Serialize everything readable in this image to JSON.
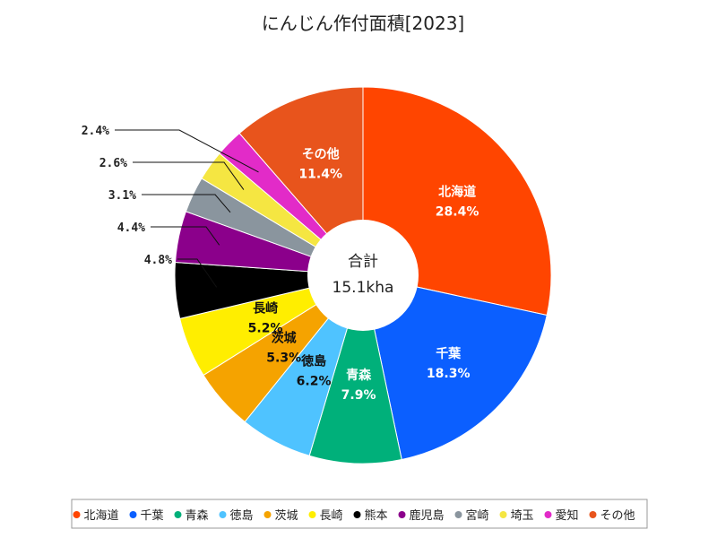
{
  "chart_data": {
    "type": "pie",
    "title": "にんじん作付面積[2023]",
    "center_label": "合計",
    "center_value": "15.1kha",
    "slices": [
      {
        "name": "北海道",
        "value": 28.4,
        "label": "28.4%",
        "color": "#ff4500",
        "text_color": "#ffffff",
        "label_position": "inside"
      },
      {
        "name": "千葉",
        "value": 18.3,
        "label": "18.3%",
        "color": "#0b5fff",
        "text_color": "#ffffff",
        "label_position": "inside"
      },
      {
        "name": "青森",
        "value": 7.9,
        "label": "7.9%",
        "color": "#00b07a",
        "text_color": "#ffffff",
        "label_position": "inside"
      },
      {
        "name": "徳島",
        "value": 6.2,
        "label": "6.2%",
        "color": "#4fc3ff",
        "text_color": "#111111",
        "label_position": "inside"
      },
      {
        "name": "茨城",
        "value": 5.3,
        "label": "5.3%",
        "color": "#f5a300",
        "text_color": "#111111",
        "label_position": "inside"
      },
      {
        "name": "長崎",
        "value": 5.2,
        "label": "5.2%",
        "color": "#ffee00",
        "text_color": "#111111",
        "label_position": "inside"
      },
      {
        "name": "熊本",
        "value": 4.8,
        "label": "4.8%",
        "color": "#000000",
        "text_color": "#111111",
        "label_position": "outside"
      },
      {
        "name": "鹿児島",
        "value": 4.4,
        "label": "4.4%",
        "color": "#8b008b",
        "text_color": "#111111",
        "label_position": "outside"
      },
      {
        "name": "宮崎",
        "value": 3.1,
        "label": "3.1%",
        "color": "#8a959e",
        "text_color": "#111111",
        "label_position": "outside"
      },
      {
        "name": "埼玉",
        "value": 2.6,
        "label": "2.6%",
        "color": "#f5e642",
        "text_color": "#111111",
        "label_position": "outside"
      },
      {
        "name": "愛知",
        "value": 2.4,
        "label": "2.4%",
        "color": "#e22bc8",
        "text_color": "#111111",
        "label_position": "outside"
      },
      {
        "name": "その他",
        "value": 11.4,
        "label": "11.4%",
        "color": "#e8541c",
        "text_color": "#ffffff",
        "label_position": "inside"
      }
    ],
    "legend_position": "bottom"
  }
}
